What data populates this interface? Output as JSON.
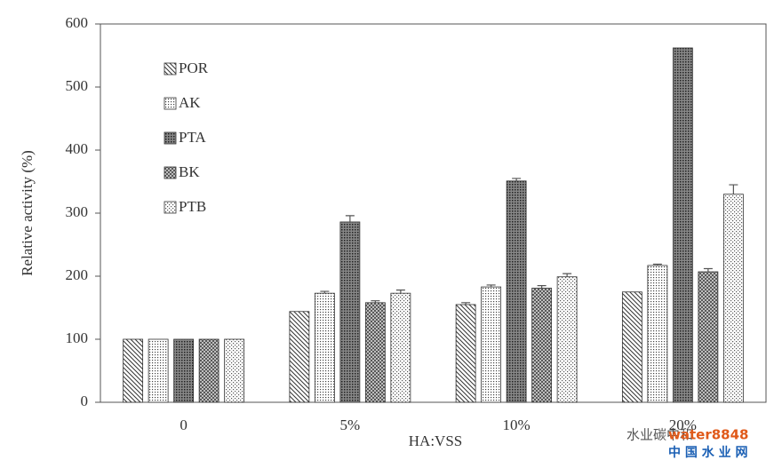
{
  "chart_data": {
    "type": "bar",
    "x_label": "HA:VSS",
    "y_label": "Relative activity (%)",
    "categories": [
      "0",
      "5%",
      "10%",
      "20%"
    ],
    "series": [
      {
        "name": "POR",
        "pattern": "diagonal",
        "values": [
          100,
          144,
          155,
          175
        ],
        "errors": [
          0,
          0,
          3,
          0
        ]
      },
      {
        "name": "AK",
        "pattern": "fine-dots",
        "values": [
          100,
          173,
          183,
          217
        ],
        "errors": [
          0,
          3,
          3,
          2
        ]
      },
      {
        "name": "PTA",
        "pattern": "dense",
        "values": [
          100,
          286,
          351,
          562
        ],
        "errors": [
          0,
          10,
          4,
          0
        ]
      },
      {
        "name": "BK",
        "pattern": "crosshatch",
        "values": [
          100,
          158,
          181,
          207
        ],
        "errors": [
          0,
          3,
          4,
          5
        ]
      },
      {
        "name": "PTB",
        "pattern": "sparse-dots",
        "values": [
          100,
          173,
          199,
          330
        ],
        "errors": [
          0,
          5,
          5,
          15
        ]
      }
    ],
    "ylim": [
      0,
      600
    ],
    "yticks": [
      0,
      100,
      200,
      300,
      400,
      500,
      600
    ],
    "legend": "top-left"
  },
  "watermark": {
    "account": "水业碳中和",
    "site": "water8848",
    "site_name": "中 国 水 业 网"
  }
}
